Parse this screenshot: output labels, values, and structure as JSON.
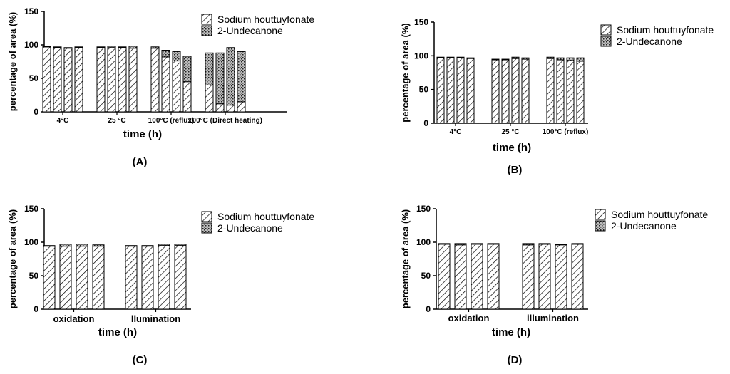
{
  "legend": {
    "sodium": "Sodium houttuyfonate",
    "undecanone": "2-Undecanone"
  },
  "chart_data": [
    {
      "panel": "(A)",
      "type": "bar",
      "stacked": true,
      "ylabel": "percentage of area (%)",
      "xlabel": "time (h)",
      "ylim": [
        0,
        150
      ],
      "yticks": [
        0,
        50,
        100,
        150
      ],
      "groups": [
        {
          "label": "4°C",
          "sodium": [
            97,
            96,
            95,
            96
          ],
          "undecanone": [
            1,
            1,
            1,
            1
          ]
        },
        {
          "label": "25 °C",
          "sodium": [
            96,
            96,
            96,
            95
          ],
          "undecanone": [
            1,
            2,
            1,
            3
          ]
        },
        {
          "label": "100°C (reflux)",
          "sodium": [
            95,
            82,
            76,
            45
          ],
          "undecanone": [
            2,
            10,
            14,
            38
          ]
        },
        {
          "label": "100°C (Direct heating)",
          "sodium": [
            40,
            12,
            10,
            15
          ],
          "undecanone": [
            48,
            76,
            86,
            75
          ]
        }
      ]
    },
    {
      "panel": "(B)",
      "type": "bar",
      "stacked": true,
      "ylabel": "percentage of area (%)",
      "xlabel": "time (h)",
      "ylim": [
        0,
        150
      ],
      "yticks": [
        0,
        50,
        100,
        150
      ],
      "groups": [
        {
          "label": "4°C",
          "sodium": [
            97,
            97,
            97,
            96
          ],
          "undecanone": [
            1,
            1,
            1,
            1
          ]
        },
        {
          "label": "25 °C",
          "sodium": [
            94,
            94,
            96,
            95
          ],
          "undecanone": [
            1,
            1,
            2,
            2
          ]
        },
        {
          "label": "100°C (reflux)",
          "sodium": [
            96,
            94,
            93,
            92
          ],
          "undecanone": [
            2,
            3,
            4,
            5
          ]
        }
      ]
    },
    {
      "panel": "(C)",
      "type": "bar",
      "stacked": true,
      "ylabel": "percentage of area (%)",
      "xlabel": "time (h)",
      "ylim": [
        0,
        150
      ],
      "yticks": [
        0,
        50,
        100,
        150
      ],
      "groups": [
        {
          "label": "oxidation",
          "sodium": [
            94,
            94,
            94,
            94
          ],
          "undecanone": [
            1,
            3,
            3,
            2
          ]
        },
        {
          "label": "llumination",
          "sodium": [
            94,
            94,
            95,
            95
          ],
          "undecanone": [
            1,
            1,
            2,
            2
          ]
        }
      ]
    },
    {
      "panel": "(D)",
      "type": "bar",
      "stacked": true,
      "ylabel": "percentage of area (%)",
      "xlabel": "time (h)",
      "ylim": [
        0,
        150
      ],
      "yticks": [
        0,
        50,
        100,
        150
      ],
      "groups": [
        {
          "label": "oxidation",
          "sodium": [
            97,
            96,
            97,
            97
          ],
          "undecanone": [
            1,
            2,
            1,
            1
          ]
        },
        {
          "label": "illumination",
          "sodium": [
            96,
            97,
            96,
            97
          ],
          "undecanone": [
            2,
            1,
            1,
            1
          ]
        }
      ]
    }
  ]
}
